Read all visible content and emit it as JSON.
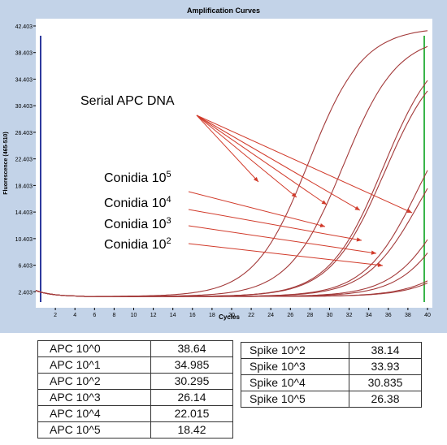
{
  "chart_data": {
    "type": "line",
    "title": "Amplification Curves",
    "xlabel": "Cycles",
    "ylabel": "Fluorescence (465-510)",
    "xlim": [
      0,
      40.5
    ],
    "ylim": [
      0,
      43.5
    ],
    "xticks": [
      2,
      4,
      6,
      8,
      10,
      12,
      14,
      16,
      18,
      20,
      22,
      24,
      26,
      28,
      30,
      32,
      34,
      36,
      38,
      40
    ],
    "yticks": [
      "2.403",
      "6.403",
      "10.403",
      "14.403",
      "18.403",
      "22.403",
      "26.403",
      "30.403",
      "34.403",
      "38.403",
      "42.403"
    ],
    "grid": false,
    "series_color": "#a33a3a",
    "series": [
      {
        "ct": 18.42,
        "max": 42.2
      },
      {
        "ct": 22.015,
        "max": 41.0
      },
      {
        "ct": 26.14,
        "max": 40.6
      },
      {
        "ct": 30.295,
        "max": 34.8
      },
      {
        "ct": 34.985,
        "max": 33.6
      },
      {
        "ct": 38.64,
        "max": 18.5
      },
      {
        "ct": 26.38,
        "max": 39.0
      },
      {
        "ct": 30.835,
        "max": 30.8
      },
      {
        "ct": 33.93,
        "max": 31.0
      },
      {
        "ct": 38.14,
        "max": 16.8
      }
    ],
    "annotations": [
      {
        "id": "serial",
        "text": "Serial APC DNA",
        "sup": ""
      },
      {
        "id": "c5",
        "text": "Conidia 10",
        "sup": "5"
      },
      {
        "id": "c4",
        "text": "Conidia 10",
        "sup": "4"
      },
      {
        "id": "c3",
        "text": "Conidia 10",
        "sup": "3"
      },
      {
        "id": "c2",
        "text": "Conidia 10",
        "sup": "2"
      }
    ]
  },
  "table_left": [
    {
      "label": "APC 10^0",
      "value": "38.64"
    },
    {
      "label": "APC 10^1",
      "value": "34.985"
    },
    {
      "label": "APC 10^2",
      "value": "30.295"
    },
    {
      "label": "APC 10^3",
      "value": "26.14"
    },
    {
      "label": "APC 10^4",
      "value": "22.015"
    },
    {
      "label": "APC 10^5",
      "value": "18.42"
    }
  ],
  "table_right": [
    {
      "label": "Spike 10^2",
      "value": "38.14"
    },
    {
      "label": "Spike 10^3",
      "value": "33.93"
    },
    {
      "label": "Spike 10^4",
      "value": "30.835"
    },
    {
      "label": "Spike 10^5",
      "value": "26.38"
    }
  ]
}
